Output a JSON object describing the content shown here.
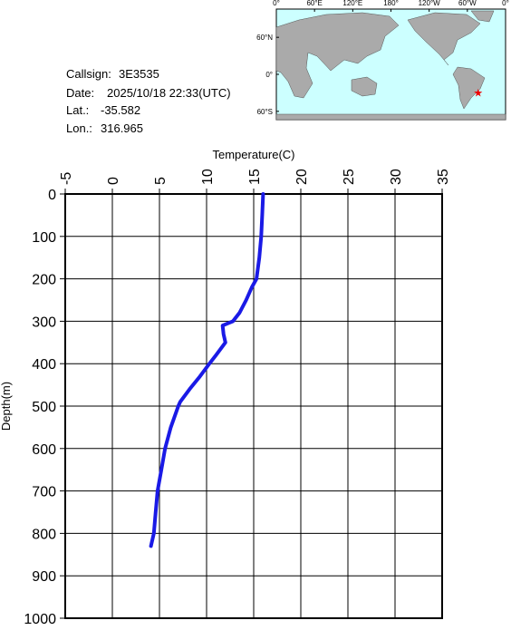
{
  "info": {
    "callsign": {
      "label": "Callsign:",
      "value": "3E3535"
    },
    "date": {
      "label": "Date:",
      "value": "2025/10/18 22:33(UTC)"
    },
    "lat": {
      "label": "Lat.:",
      "value": -35.582
    },
    "lon": {
      "label": "Lon.:",
      "value": 316.965
    }
  },
  "map": {
    "lonticks": [
      {
        "value": 0,
        "label": "0°"
      },
      {
        "value": 60,
        "label": "60°E"
      },
      {
        "value": 120,
        "label": "120°E"
      },
      {
        "value": 180,
        "label": "180°"
      },
      {
        "value": 240,
        "label": "120°W"
      },
      {
        "value": 300,
        "label": "60°W"
      },
      {
        "value": 360,
        "label": "0°"
      }
    ],
    "latticks": [
      {
        "value": 60,
        "label": "60°N"
      },
      {
        "value": 0,
        "label": "0°"
      },
      {
        "value": -60,
        "label": "60°S"
      }
    ]
  },
  "chart_data": {
    "type": "line",
    "xlabel": "Temperature(C)",
    "ylabel": "Depth(m)",
    "xlim": [
      -5,
      35
    ],
    "xticks": [
      -5,
      0,
      5,
      10,
      15,
      20,
      25,
      30,
      35
    ],
    "ylim": [
      0,
      1000
    ],
    "yticks": [
      0,
      100,
      200,
      300,
      400,
      500,
      600,
      700,
      800,
      900,
      1000
    ],
    "y_inverted": true,
    "grid": true,
    "color": "#1a1ae6",
    "x": [
      16.0,
      15.9,
      15.8,
      15.6,
      15.3,
      14.8,
      14.2,
      13.5,
      12.8,
      11.7,
      11.8,
      12.0,
      11.5,
      11.0,
      10.3,
      9.3,
      8.2,
      7.2,
      7.0,
      6.2,
      5.6,
      5.2,
      4.8,
      4.6,
      4.4,
      4.1
    ],
    "values": [
      0,
      50,
      100,
      150,
      200,
      220,
      250,
      280,
      300,
      310,
      330,
      350,
      365,
      380,
      400,
      430,
      460,
      490,
      500,
      550,
      600,
      650,
      700,
      750,
      800,
      830
    ]
  }
}
